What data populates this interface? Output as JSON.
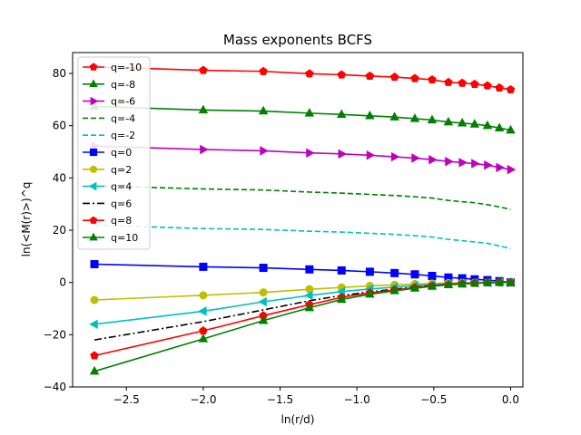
{
  "chart_data": {
    "type": "line",
    "title": "Mass exponents BCFS",
    "xlabel": "ln(r/d)",
    "ylabel": "ln(<M(r)>)^q",
    "xlim": [
      -2.85,
      0.08
    ],
    "ylim": [
      -40,
      88
    ],
    "xticks": [
      -2.5,
      -2.0,
      -1.5,
      -1.0,
      -0.5,
      0.0
    ],
    "xtick_labels": [
      "−2.5",
      "−2.0",
      "−1.5",
      "−1.0",
      "−0.5",
      "0.0"
    ],
    "yticks": [
      -40,
      -20,
      0,
      20,
      40,
      60,
      80
    ],
    "ytick_labels": [
      "−40",
      "−20",
      "0",
      "20",
      "40",
      "60",
      "80"
    ],
    "grid": false,
    "legend_position": "top-left",
    "x": [
      -2.708,
      -2.0,
      -1.609,
      -1.309,
      -1.1,
      -0.916,
      -0.755,
      -0.623,
      -0.511,
      -0.405,
      -0.315,
      -0.234,
      -0.151,
      -0.073,
      0.0
    ],
    "series": [
      {
        "name": "q=-10",
        "color": "#ff0000",
        "dash": "",
        "marker": "pentagon",
        "values": [
          82.5,
          81.2,
          80.8,
          79.9,
          79.5,
          79.0,
          78.6,
          78.1,
          77.6,
          76.6,
          76.3,
          75.9,
          75.3,
          74.5,
          73.8
        ]
      },
      {
        "name": "q=-8",
        "color": "#008000",
        "dash": "",
        "marker": "triangle-up",
        "values": [
          67.4,
          66.0,
          65.6,
          64.8,
          64.3,
          63.8,
          63.3,
          62.7,
          62.2,
          61.4,
          61.0,
          60.6,
          60.0,
          59.1,
          58.3
        ]
      },
      {
        "name": "q=-6",
        "color": "#bf00bf",
        "dash": "",
        "marker": "triangle-right",
        "values": [
          52.2,
          50.9,
          50.4,
          49.6,
          49.2,
          48.7,
          48.1,
          47.6,
          47.0,
          46.3,
          45.9,
          45.5,
          44.9,
          44.0,
          43.2
        ]
      },
      {
        "name": "q=-4",
        "color": "#008000",
        "dash": "6,3",
        "marker": "none",
        "values": [
          37.0,
          35.8,
          35.4,
          34.6,
          34.2,
          33.7,
          33.3,
          32.8,
          32.3,
          31.4,
          30.9,
          30.5,
          29.8,
          28.9,
          28.0
        ]
      },
      {
        "name": "q=-2",
        "color": "#00bfbf",
        "dash": "6,3",
        "marker": "none",
        "values": [
          22.0,
          20.6,
          20.3,
          19.6,
          19.3,
          18.8,
          18.4,
          17.9,
          17.4,
          16.5,
          16.0,
          15.5,
          15.0,
          14.0,
          13.0
        ]
      },
      {
        "name": "q=0",
        "color": "#0000ff",
        "dash": "",
        "marker": "square",
        "values": [
          7.0,
          6.0,
          5.6,
          5.0,
          4.6,
          4.1,
          3.6,
          3.1,
          2.5,
          1.9,
          1.6,
          1.2,
          0.9,
          0.5,
          0.0
        ]
      },
      {
        "name": "q=2",
        "color": "#bfbf00",
        "dash": "",
        "marker": "circle",
        "values": [
          -6.7,
          -4.9,
          -3.8,
          -2.6,
          -1.9,
          -1.3,
          -0.9,
          -0.6,
          -0.4,
          -0.2,
          -0.1,
          -0.05,
          0.0,
          0.0,
          0.0
        ]
      },
      {
        "name": "q=4",
        "color": "#00bfbf",
        "dash": "",
        "marker": "triangle-left",
        "values": [
          -16.0,
          -11.0,
          -7.4,
          -5.0,
          -3.5,
          -2.5,
          -1.8,
          -1.2,
          -0.8,
          -0.5,
          -0.3,
          -0.2,
          -0.1,
          0.0,
          0.0
        ]
      },
      {
        "name": "q=6",
        "color": "#000000",
        "dash": "8,3,2,3",
        "marker": "none",
        "values": [
          -22.0,
          -15.0,
          -10.5,
          -7.0,
          -5.0,
          -3.6,
          -2.6,
          -1.8,
          -1.2,
          -0.8,
          -0.5,
          -0.3,
          -0.1,
          0.0,
          0.0
        ]
      },
      {
        "name": "q=8",
        "color": "#ff0000",
        "dash": "",
        "marker": "pentagon",
        "values": [
          -28.0,
          -18.5,
          -12.7,
          -8.5,
          -5.7,
          -4.0,
          -2.9,
          -2.0,
          -1.3,
          -0.8,
          -0.5,
          -0.3,
          -0.1,
          0.0,
          0.0
        ]
      },
      {
        "name": "q=10",
        "color": "#008000",
        "dash": "",
        "marker": "triangle-up",
        "values": [
          -34.0,
          -21.6,
          -14.6,
          -9.7,
          -6.5,
          -4.5,
          -3.2,
          -2.2,
          -1.5,
          -0.9,
          -0.6,
          -0.3,
          -0.1,
          0.0,
          0.0
        ]
      }
    ]
  }
}
